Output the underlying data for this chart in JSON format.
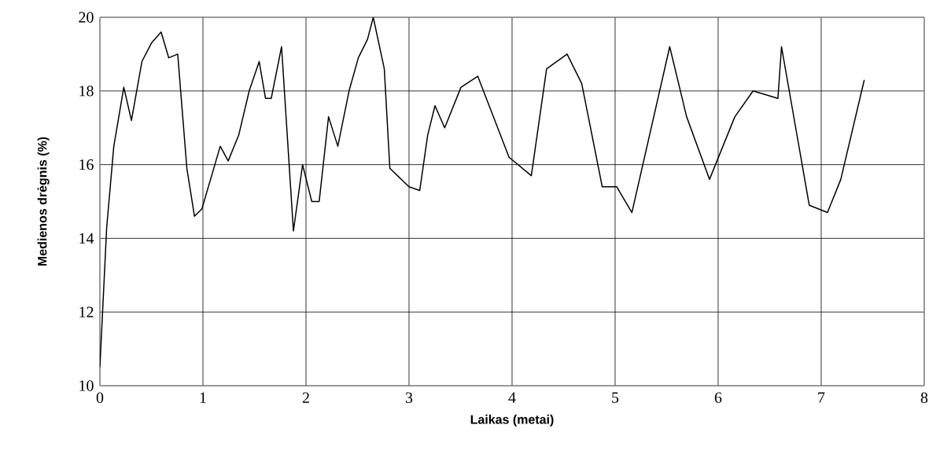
{
  "chart_data": {
    "type": "line",
    "xlabel": "Laikas (metai)",
    "ylabel": "Medienos drėgnis (%)",
    "x": [
      0,
      0.066,
      0.135,
      0.232,
      0.306,
      0.408,
      0.5,
      0.594,
      0.668,
      0.755,
      0.844,
      0.918,
      0.99,
      1.168,
      1.245,
      1.347,
      1.449,
      1.546,
      1.607,
      1.663,
      1.763,
      1.878,
      1.967,
      2.056,
      2.128,
      2.219,
      2.309,
      2.418,
      2.508,
      2.597,
      2.653,
      2.76,
      2.814,
      3.0,
      3.104,
      3.181,
      3.252,
      3.346,
      3.504,
      3.667,
      3.971,
      4.187,
      4.335,
      4.534,
      4.676,
      4.875,
      5.015,
      5.163,
      5.53,
      5.694,
      5.916,
      6.162,
      6.339,
      6.58,
      6.615,
      6.884,
      7.061,
      7.19,
      7.418
    ],
    "series": [
      {
        "color": "#000000",
        "values": [
          10.5,
          14.3,
          16.5,
          18.1,
          17.2,
          18.8,
          19.3,
          19.6,
          18.9,
          19.0,
          15.9,
          14.6,
          14.8,
          16.5,
          16.1,
          16.8,
          18.0,
          18.8,
          17.8,
          17.8,
          19.2,
          14.2,
          16.0,
          15.0,
          15.0,
          17.3,
          16.5,
          18.0,
          18.9,
          19.4,
          20.0,
          18.6,
          15.9,
          15.4,
          15.3,
          16.8,
          17.6,
          17.0,
          18.1,
          18.4,
          16.2,
          15.7,
          18.6,
          19.0,
          18.2,
          15.4,
          15.4,
          14.7,
          19.2,
          17.3,
          15.6,
          17.3,
          18.0,
          17.8,
          19.2,
          14.9,
          14.7,
          15.6,
          18.3
        ]
      }
    ],
    "xlim": [
      0,
      8
    ],
    "ylim": [
      10,
      20
    ],
    "xticks": [
      0,
      1,
      2,
      3,
      4,
      5,
      6,
      7,
      8
    ],
    "yticks": [
      10,
      12,
      14,
      16,
      18,
      20
    ],
    "grid": true,
    "marker": "none",
    "line_style": "solid"
  }
}
